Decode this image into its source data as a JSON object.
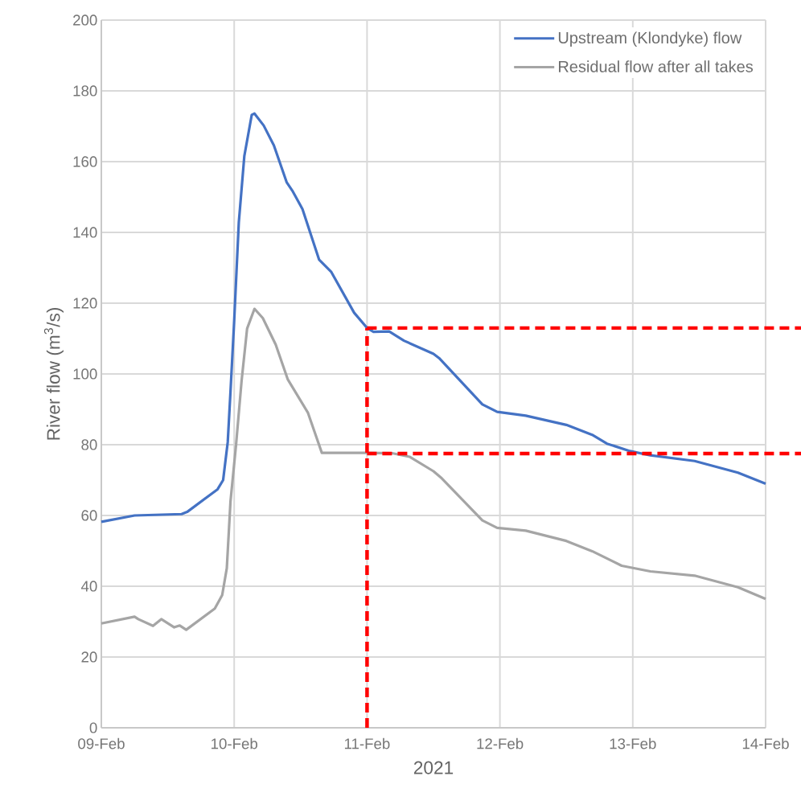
{
  "chart_data": {
    "type": "line",
    "xlabel": "2021",
    "ylabel": "River flow (m$^{3}$/s)",
    "xlim": [
      "2021-02-09",
      "2021-02-14"
    ],
    "xticks": [
      {
        "value": "2021-02-09",
        "label": "09-Feb"
      },
      {
        "value": "2021-02-10",
        "label": "10-Feb"
      },
      {
        "value": "2021-02-11",
        "label": "11-Feb"
      },
      {
        "value": "2021-02-12",
        "label": "12-Feb"
      },
      {
        "value": "2021-02-13",
        "label": "13-Feb"
      },
      {
        "value": "2021-02-14",
        "label": "14-Feb"
      }
    ],
    "ylim": [
      0,
      200
    ],
    "yticks": [
      0,
      20,
      40,
      60,
      80,
      100,
      120,
      140,
      160,
      180,
      200
    ],
    "grid": true,
    "legend": "top right",
    "marker": "none",
    "ref_lines": [
      {
        "axis": "x",
        "value": "2021-02-11",
        "color": "#ff0000",
        "line_style": "dashed"
      },
      {
        "axis": "y",
        "value": 113,
        "color": "#ff0000",
        "line_style": "dashed"
      },
      {
        "axis": "y",
        "value": 77.5,
        "color": "#ff0000",
        "line_style": "dashed"
      }
    ],
    "series": [
      {
        "name": "Upstream (Klondyke) flow",
        "color": "#4472c4",
        "x": [
          "2021-02-09T00:00",
          "2021-02-09T06:00",
          "2021-02-09T14:30",
          "2021-02-09T15:30",
          "2021-02-09T21:00",
          "2021-02-09T22:00",
          "2021-02-09T22:50",
          "2021-02-09T23:20",
          "2021-02-10T00:00",
          "2021-02-10T00:50",
          "2021-02-10T01:50",
          "2021-02-10T03:10",
          "2021-02-10T03:40",
          "2021-02-10T05:20",
          "2021-02-10T07:10",
          "2021-02-10T09:30",
          "2021-02-10T10:30",
          "2021-02-10T12:20",
          "2021-02-10T15:20",
          "2021-02-10T17:30",
          "2021-02-10T21:40",
          "2021-02-11T00:00",
          "2021-02-11T01:10",
          "2021-02-11T04:00",
          "2021-02-11T06:40",
          "2021-02-11T12:00",
          "2021-02-11T13:00",
          "2021-02-11T20:50",
          "2021-02-11T23:30",
          "2021-02-12T04:40",
          "2021-02-12T12:00",
          "2021-02-12T16:40",
          "2021-02-12T19:20",
          "2021-02-12T23:30",
          "2021-02-13T03:10",
          "2021-02-13T11:10",
          "2021-02-13T19:00",
          "2021-02-14T00:00"
        ],
        "values": [
          58.2,
          60.0,
          60.4,
          61,
          67.4,
          70,
          80.7,
          95,
          115,
          142.8,
          161.6,
          173.2,
          173.6,
          170.2,
          164.6,
          154.1,
          151.8,
          146.6,
          132.3,
          128.9,
          117.3,
          113,
          111.9,
          112.0,
          109.4,
          105.7,
          104.5,
          91.4,
          89.3,
          88.2,
          85.6,
          82.8,
          80.3,
          78.2,
          77.0,
          75.4,
          72.1,
          69.0
        ]
      },
      {
        "name": "Residual flow after all takes",
        "color": "#a5a5a5",
        "x": [
          "2021-02-09T00:00",
          "2021-02-09T06:00",
          "2021-02-09T06:40",
          "2021-02-09T09:20",
          "2021-02-09T10:50",
          "2021-02-09T13:10",
          "2021-02-09T14:10",
          "2021-02-09T15:20",
          "2021-02-09T20:30",
          "2021-02-09T21:50",
          "2021-02-09T22:40",
          "2021-02-09T23:20",
          "2021-02-10T00:20",
          "2021-02-10T01:20",
          "2021-02-10T02:20",
          "2021-02-10T03:40",
          "2021-02-10T05:10",
          "2021-02-10T07:30",
          "2021-02-10T09:40",
          "2021-02-10T13:20",
          "2021-02-10T14:50",
          "2021-02-10T15:50",
          "2021-02-11T00:00",
          "2021-02-11T04:30",
          "2021-02-11T07:40",
          "2021-02-11T12:00",
          "2021-02-11T13:30",
          "2021-02-11T20:50",
          "2021-02-11T23:30",
          "2021-02-12T04:40",
          "2021-02-12T12:00",
          "2021-02-12T16:40",
          "2021-02-12T22:00",
          "2021-02-13T03:10",
          "2021-02-13T11:10",
          "2021-02-13T19:00",
          "2021-02-14T00:00"
        ],
        "values": [
          29.5,
          31.4,
          30.7,
          28.8,
          30.7,
          28.4,
          28.9,
          27.7,
          33.7,
          37.5,
          45.1,
          64.0,
          79.9,
          98.0,
          112.8,
          118.4,
          115.8,
          108.3,
          98.5,
          89.0,
          82.2,
          77.7,
          77.7,
          77.6,
          76.6,
          72.5,
          70.5,
          58.6,
          56.5,
          55.7,
          52.8,
          49.9,
          45.8,
          44.2,
          43.0,
          39.7,
          36.4
        ]
      }
    ]
  }
}
